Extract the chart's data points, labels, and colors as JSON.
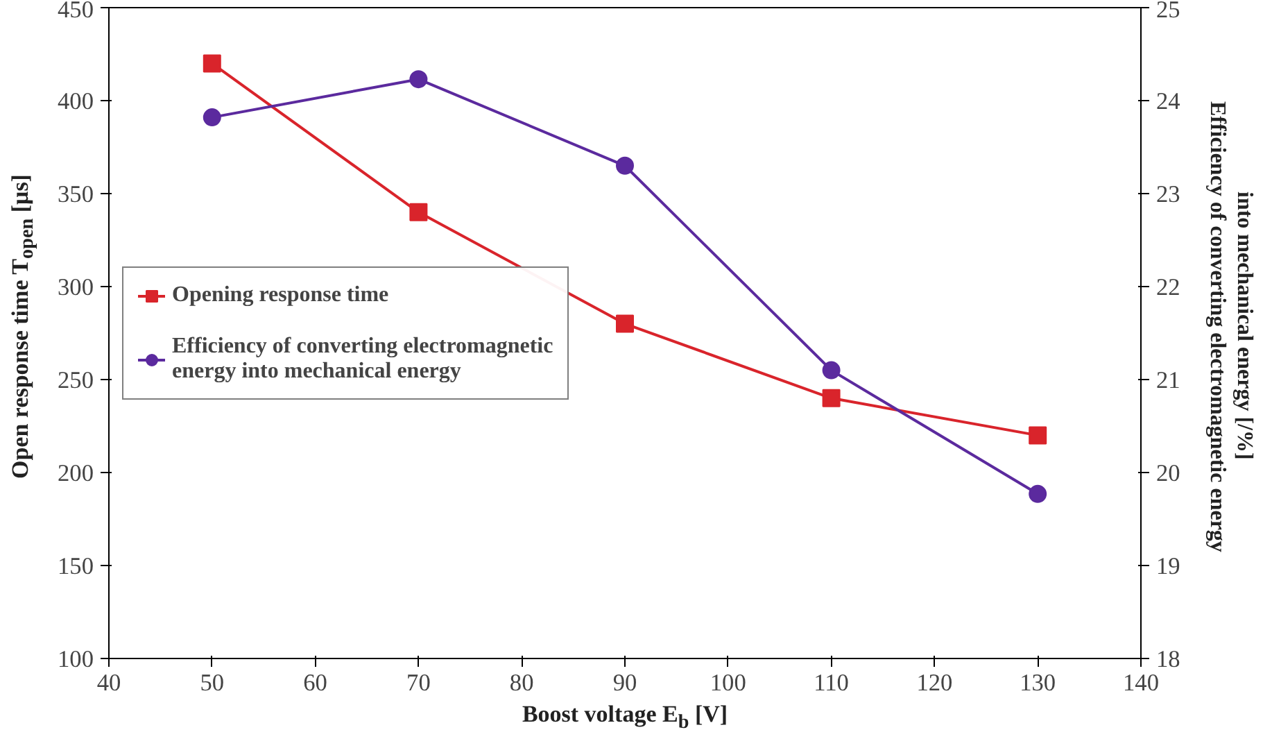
{
  "chart_data": {
    "type": "line",
    "xlabel": "Boost voltage E$_{b}$ [V]",
    "ylabel": "Open response time T$_{open}$ [μs]",
    "y2label": "Efficiency of converting electromagnetic energy\ninto mechanical energy [/%]",
    "x": [
      50,
      70,
      90,
      110,
      130
    ],
    "xlim": [
      40,
      140
    ],
    "xticks": [
      40,
      50,
      60,
      70,
      80,
      90,
      100,
      110,
      120,
      130,
      140
    ],
    "ylim": [
      100,
      450
    ],
    "yticks": [
      100,
      150,
      200,
      250,
      300,
      350,
      400,
      450
    ],
    "y2lim": [
      18,
      25
    ],
    "y2ticks": [
      18,
      19,
      20,
      21,
      22,
      23,
      24,
      25
    ],
    "grid": false,
    "legend": "left",
    "series": [
      {
        "name": "Opening response time",
        "color": "#d9242b",
        "marker": "square",
        "values": [
          420,
          340,
          280,
          240,
          220
        ]
      },
      {
        "name": "Efficiency of converting electromagnetic\nenergy into mechanical energy",
        "color": "#5b2a9e",
        "marker": "circle",
        "axis": "y2",
        "values": [
          23.82,
          24.23,
          23.3,
          21.1,
          19.77
        ]
      }
    ]
  }
}
